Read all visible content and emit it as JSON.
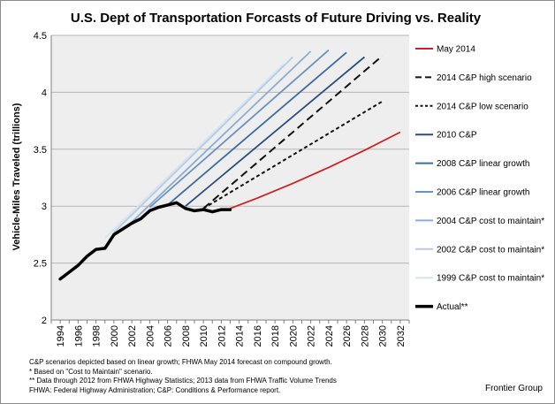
{
  "chart_data": {
    "type": "line",
    "title": "U.S. Dept of Transportation Forcasts of Future Driving vs. Reality",
    "xlabel": "",
    "ylabel": "Vehicle-Miles Traveled (trillions)",
    "xlim": [
      1993,
      2033
    ],
    "ylim": [
      2,
      4.5
    ],
    "grid": "horizontal",
    "legend_position": "right",
    "x_ticks": [
      "1994",
      "1996",
      "1998",
      "2000",
      "2002",
      "2004",
      "2006",
      "2008",
      "2010",
      "2012",
      "2014",
      "2016",
      "2018",
      "2020",
      "2022",
      "2024",
      "2026",
      "2028",
      "2030",
      "2032"
    ],
    "y_ticks": [
      "2",
      "2.5",
      "3",
      "3.5",
      "4",
      "4.5"
    ],
    "series": [
      {
        "name": "May 2014",
        "color": "#cc2222",
        "style": "solid",
        "x": [
          2013,
          2016,
          2020,
          2024,
          2028,
          2032
        ],
        "y": [
          2.98,
          3.07,
          3.2,
          3.34,
          3.49,
          3.65
        ]
      },
      {
        "name": "2014 C&P high scenario",
        "color": "#111111",
        "style": "longdash",
        "x": [
          2010,
          2030
        ],
        "y": [
          2.98,
          4.32
        ]
      },
      {
        "name": "2014 C&P low scenario",
        "color": "#111111",
        "style": "shortdash",
        "x": [
          2010,
          2030
        ],
        "y": [
          2.98,
          3.92
        ]
      },
      {
        "name": "2010 C&P",
        "color": "#2b4f7e",
        "style": "solid",
        "x": [
          2008,
          2028
        ],
        "y": [
          3.0,
          4.31
        ]
      },
      {
        "name": "2008 C&P linear growth",
        "color": "#3d6c9e",
        "style": "solid",
        "x": [
          2006,
          2026
        ],
        "y": [
          3.01,
          4.35
        ]
      },
      {
        "name": "2006 C&P linear growth",
        "color": "#6a92bd",
        "style": "solid",
        "x": [
          2004,
          2024
        ],
        "y": [
          2.99,
          4.37
        ]
      },
      {
        "name": "2004 C&P cost to maintain*",
        "color": "#8aaed2",
        "style": "solid",
        "x": [
          2002,
          2022
        ],
        "y": [
          2.86,
          4.36
        ]
      },
      {
        "name": "2002 C&P cost to maintain*",
        "color": "#b3cce5",
        "style": "solid",
        "x": [
          2000,
          2020
        ],
        "y": [
          2.77,
          4.31
        ]
      },
      {
        "name": "1999 C&P cost to maintain*",
        "color": "#d6e3f1",
        "style": "solid",
        "x": [
          1999,
          2019
        ],
        "y": [
          2.72,
          4.25
        ]
      },
      {
        "name": "Actual**",
        "color": "#000000",
        "style": "thick",
        "x": [
          1994,
          1995,
          1996,
          1997,
          1998,
          1999,
          2000,
          2001,
          2002,
          2003,
          2004,
          2005,
          2006,
          2007,
          2008,
          2009,
          2010,
          2011,
          2012,
          2013
        ],
        "y": [
          2.36,
          2.42,
          2.48,
          2.56,
          2.62,
          2.63,
          2.75,
          2.8,
          2.85,
          2.89,
          2.96,
          2.99,
          3.01,
          3.03,
          2.98,
          2.96,
          2.97,
          2.95,
          2.97,
          2.97
        ]
      }
    ]
  },
  "footnotes": [
    "C&P scenarios depicted based on linear growth; FHWA May 2014 forecast on compound growth.",
    "* Based on \"Cost to Maintain\" scenario.",
    "** Data through 2012 from FHWA Highway Statistics; 2013 data from FHWA Traffic Volume Trends",
    "FHWA: Federal Highway Administration; C&P: Conditions & Performance report."
  ],
  "credit": "Frontier Group"
}
